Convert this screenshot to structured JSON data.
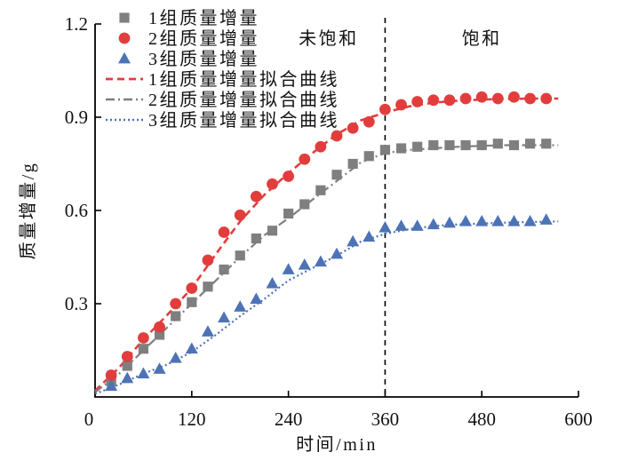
{
  "colors": {
    "red": "#e23d3d",
    "gray": "#7f7f7f",
    "blue": "#4d73b5",
    "axis": "#000000"
  },
  "axes": {
    "x_label": "时间/min",
    "y_label": "质量增量/g",
    "x_ticks": [
      0,
      120,
      240,
      360,
      480,
      600
    ],
    "y_ticks": [
      0.3,
      0.6,
      0.9,
      1.2
    ],
    "x_range": [
      0,
      600
    ],
    "y_range": [
      0,
      1.2
    ]
  },
  "legend": [
    {
      "kind": "marker",
      "shape": "square",
      "color_key": "gray",
      "label": "1组质量增量"
    },
    {
      "kind": "marker",
      "shape": "circle",
      "color_key": "red",
      "label": "2组质量增量"
    },
    {
      "kind": "marker",
      "shape": "triangle",
      "color_key": "blue",
      "label": "3组质量增量"
    },
    {
      "kind": "line",
      "style": "dashed",
      "color_key": "red",
      "label": "1组质量增量拟合曲线"
    },
    {
      "kind": "line",
      "style": "dashdot",
      "color_key": "gray",
      "label": "2组质量增量拟合曲线"
    },
    {
      "kind": "line",
      "style": "dotted",
      "color_key": "blue",
      "label": "3组质量增量拟合曲线"
    }
  ],
  "chart_data": {
    "type": "scatter",
    "title": "",
    "xlabel": "时间/min",
    "ylabel": "质量增量/g",
    "xlim": [
      0,
      620
    ],
    "ylim": [
      0,
      1.2
    ],
    "grid": false,
    "legend_position": "upper-left",
    "x": [
      20,
      40,
      60,
      80,
      100,
      120,
      140,
      160,
      180,
      200,
      220,
      240,
      260,
      280,
      300,
      320,
      340,
      360,
      380,
      400,
      420,
      440,
      460,
      480,
      500,
      520,
      540,
      560
    ],
    "series": [
      {
        "name": "1组质量增量",
        "marker": "square",
        "color_key": "gray",
        "values": [
          0.05,
          0.1,
          0.155,
          0.2,
          0.26,
          0.305,
          0.355,
          0.41,
          0.455,
          0.51,
          0.535,
          0.59,
          0.62,
          0.665,
          0.715,
          0.75,
          0.775,
          0.795,
          0.8,
          0.805,
          0.81,
          0.81,
          0.81,
          0.81,
          0.815,
          0.81,
          0.815,
          0.815
        ]
      },
      {
        "name": "2组质量增量",
        "marker": "circle",
        "color_key": "red",
        "values": [
          0.07,
          0.13,
          0.19,
          0.225,
          0.3,
          0.35,
          0.44,
          0.53,
          0.585,
          0.645,
          0.685,
          0.71,
          0.765,
          0.805,
          0.84,
          0.865,
          0.885,
          0.925,
          0.94,
          0.95,
          0.955,
          0.955,
          0.96,
          0.965,
          0.96,
          0.965,
          0.96,
          0.96
        ]
      },
      {
        "name": "3组质量增量",
        "marker": "triangle",
        "color_key": "blue",
        "values": [
          0.035,
          0.06,
          0.075,
          0.09,
          0.125,
          0.155,
          0.21,
          0.255,
          0.29,
          0.315,
          0.365,
          0.41,
          0.425,
          0.435,
          0.46,
          0.5,
          0.515,
          0.545,
          0.55,
          0.55,
          0.555,
          0.56,
          0.565,
          0.565,
          0.565,
          0.565,
          0.565,
          0.57
        ]
      }
    ],
    "fit_x": [
      0,
      30,
      60,
      90,
      120,
      150,
      180,
      210,
      240,
      270,
      300,
      330,
      360,
      390,
      420,
      450,
      480,
      510,
      540,
      575
    ],
    "fit_series": [
      {
        "name": "1组质量增量拟合曲线",
        "style": "dashed",
        "color_key": "red",
        "values": [
          0.02,
          0.095,
          0.185,
          0.265,
          0.35,
          0.46,
          0.565,
          0.65,
          0.72,
          0.785,
          0.845,
          0.89,
          0.915,
          0.935,
          0.947,
          0.953,
          0.957,
          0.959,
          0.96,
          0.96
        ]
      },
      {
        "name": "2组质量增量拟合曲线",
        "style": "dashdot",
        "color_key": "gray",
        "values": [
          0.015,
          0.075,
          0.15,
          0.225,
          0.3,
          0.375,
          0.45,
          0.52,
          0.575,
          0.635,
          0.695,
          0.755,
          0.785,
          0.795,
          0.8,
          0.805,
          0.808,
          0.81,
          0.81,
          0.81
        ]
      },
      {
        "name": "3组质量增量拟合曲线",
        "style": "dotted",
        "color_key": "blue",
        "values": [
          0.01,
          0.04,
          0.075,
          0.105,
          0.145,
          0.2,
          0.26,
          0.315,
          0.375,
          0.415,
          0.455,
          0.5,
          0.525,
          0.54,
          0.55,
          0.555,
          0.558,
          0.561,
          0.563,
          0.565
        ]
      }
    ],
    "vline": {
      "x": 360,
      "style": "dashed",
      "color": "#000000"
    },
    "annotations": [
      {
        "text": "未饱和",
        "x": 290,
        "y": 1.155
      },
      {
        "text": "饱和",
        "x": 480,
        "y": 1.155
      }
    ]
  }
}
